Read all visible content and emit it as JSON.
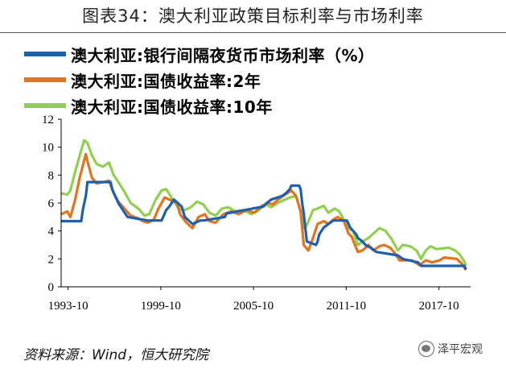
{
  "figure_title": "图表34：澳大利亚政策目标利率与市场利率",
  "source_note": "资料来源：Wind，恒大研究院",
  "watermark_text": "泽平宏观",
  "watermark_icon": "wechat-icon",
  "chart_data": {
    "type": "line",
    "x_axis": {
      "ticks": [
        "1993-10",
        "1999-10",
        "2005-10",
        "2011-10",
        "2017-10"
      ],
      "tick_years": [
        1993.75,
        1999.75,
        2005.75,
        2011.75,
        2017.75
      ],
      "range": [
        1993.3,
        2019.8
      ]
    },
    "y_axis": {
      "ticks": [
        "0",
        "2",
        "4",
        "6",
        "8",
        "10",
        "12"
      ],
      "range": [
        0,
        12
      ]
    },
    "grid": false,
    "legend_position": "top-left",
    "series": [
      {
        "name": "澳大利亚:银行间隔夜货币市场利率（%）",
        "color": "#1f5fb0",
        "points": [
          [
            1993.3,
            4.7
          ],
          [
            1993.9,
            4.7
          ],
          [
            1994.6,
            4.7
          ],
          [
            1994.7,
            5.5
          ],
          [
            1994.9,
            6.5
          ],
          [
            1995.0,
            7.5
          ],
          [
            1996.5,
            7.5
          ],
          [
            1996.6,
            7.0
          ],
          [
            1996.8,
            6.5
          ],
          [
            1997.0,
            6.0
          ],
          [
            1997.3,
            5.5
          ],
          [
            1997.6,
            5.0
          ],
          [
            1998.9,
            4.75
          ],
          [
            1999.8,
            4.75
          ],
          [
            1999.9,
            5.0
          ],
          [
            2000.1,
            5.5
          ],
          [
            2000.3,
            5.75
          ],
          [
            2000.6,
            6.25
          ],
          [
            2001.1,
            5.75
          ],
          [
            2001.3,
            5.0
          ],
          [
            2001.8,
            4.5
          ],
          [
            2002.3,
            4.75
          ],
          [
            2002.5,
            4.75
          ],
          [
            2003.9,
            5.0
          ],
          [
            2004.0,
            5.25
          ],
          [
            2005.2,
            5.5
          ],
          [
            2006.4,
            5.75
          ],
          [
            2006.6,
            6.0
          ],
          [
            2006.9,
            6.25
          ],
          [
            2007.6,
            6.5
          ],
          [
            2007.9,
            6.75
          ],
          [
            2008.1,
            7.0
          ],
          [
            2008.2,
            7.25
          ],
          [
            2008.7,
            7.25
          ],
          [
            2008.8,
            7.0
          ],
          [
            2008.9,
            6.0
          ],
          [
            2009.0,
            5.25
          ],
          [
            2009.1,
            4.25
          ],
          [
            2009.2,
            3.25
          ],
          [
            2009.8,
            3.0
          ],
          [
            2009.9,
            3.25
          ],
          [
            2010.0,
            3.75
          ],
          [
            2010.3,
            4.25
          ],
          [
            2010.9,
            4.75
          ],
          [
            2011.8,
            4.75
          ],
          [
            2011.9,
            4.5
          ],
          [
            2012.0,
            4.25
          ],
          [
            2012.4,
            3.75
          ],
          [
            2012.5,
            3.5
          ],
          [
            2012.8,
            3.25
          ],
          [
            2013.0,
            3.0
          ],
          [
            2013.4,
            2.75
          ],
          [
            2013.7,
            2.5
          ],
          [
            2015.1,
            2.25
          ],
          [
            2015.4,
            2.0
          ],
          [
            2016.4,
            1.75
          ],
          [
            2016.6,
            1.5
          ],
          [
            2019.4,
            1.5
          ],
          [
            2019.5,
            1.25
          ]
        ]
      },
      {
        "name": "澳大利亚:国债收益率:2年",
        "color": "#e4731c",
        "points": [
          [
            1993.3,
            5.2
          ],
          [
            1993.7,
            5.4
          ],
          [
            1993.9,
            5.0
          ],
          [
            1994.2,
            6.2
          ],
          [
            1994.5,
            7.8
          ],
          [
            1994.9,
            9.5
          ],
          [
            1995.0,
            9.0
          ],
          [
            1995.3,
            7.8
          ],
          [
            1995.6,
            7.4
          ],
          [
            1996.0,
            7.5
          ],
          [
            1996.4,
            7.6
          ],
          [
            1996.7,
            6.7
          ],
          [
            1997.0,
            6.1
          ],
          [
            1997.4,
            5.6
          ],
          [
            1997.8,
            5.1
          ],
          [
            1998.3,
            4.9
          ],
          [
            1998.6,
            4.7
          ],
          [
            1998.9,
            4.6
          ],
          [
            1999.3,
            4.8
          ],
          [
            1999.6,
            5.6
          ],
          [
            2000.0,
            6.4
          ],
          [
            2000.4,
            6.2
          ],
          [
            2000.8,
            6.0
          ],
          [
            2001.0,
            5.2
          ],
          [
            2001.4,
            4.6
          ],
          [
            2001.8,
            4.2
          ],
          [
            2002.2,
            5.0
          ],
          [
            2002.6,
            5.2
          ],
          [
            2002.9,
            4.7
          ],
          [
            2003.3,
            4.6
          ],
          [
            2003.8,
            5.2
          ],
          [
            2004.3,
            5.4
          ],
          [
            2004.8,
            5.2
          ],
          [
            2005.3,
            5.5
          ],
          [
            2005.8,
            5.3
          ],
          [
            2006.3,
            5.8
          ],
          [
            2006.7,
            6.0
          ],
          [
            2007.0,
            5.9
          ],
          [
            2007.4,
            6.3
          ],
          [
            2007.8,
            6.6
          ],
          [
            2008.2,
            6.9
          ],
          [
            2008.5,
            6.5
          ],
          [
            2008.8,
            5.4
          ],
          [
            2009.0,
            3.0
          ],
          [
            2009.3,
            2.6
          ],
          [
            2009.6,
            3.5
          ],
          [
            2009.9,
            4.5
          ],
          [
            2010.3,
            4.7
          ],
          [
            2010.6,
            4.5
          ],
          [
            2010.9,
            4.8
          ],
          [
            2011.2,
            5.0
          ],
          [
            2011.6,
            4.7
          ],
          [
            2011.9,
            3.8
          ],
          [
            2012.1,
            3.6
          ],
          [
            2012.5,
            2.5
          ],
          [
            2012.8,
            2.6
          ],
          [
            2013.2,
            3.0
          ],
          [
            2013.5,
            2.6
          ],
          [
            2013.9,
            2.9
          ],
          [
            2014.2,
            3.0
          ],
          [
            2014.6,
            2.8
          ],
          [
            2014.9,
            2.4
          ],
          [
            2015.2,
            1.9
          ],
          [
            2015.6,
            1.9
          ],
          [
            2016.0,
            1.9
          ],
          [
            2016.5,
            1.55
          ],
          [
            2016.9,
            1.9
          ],
          [
            2017.3,
            1.75
          ],
          [
            2017.8,
            1.9
          ],
          [
            2018.1,
            2.1
          ],
          [
            2018.5,
            2.05
          ],
          [
            2018.9,
            2.0
          ],
          [
            2019.2,
            1.7
          ],
          [
            2019.5,
            1.2
          ]
        ]
      },
      {
        "name": "澳大利亚:国债收益率:10年",
        "color": "#8fd14f",
        "points": [
          [
            1993.3,
            6.7
          ],
          [
            1993.7,
            6.6
          ],
          [
            1993.9,
            6.9
          ],
          [
            1994.2,
            8.2
          ],
          [
            1994.6,
            9.8
          ],
          [
            1994.8,
            10.5
          ],
          [
            1995.0,
            10.3
          ],
          [
            1995.3,
            9.4
          ],
          [
            1995.6,
            8.8
          ],
          [
            1996.0,
            8.6
          ],
          [
            1996.4,
            8.9
          ],
          [
            1996.7,
            8.0
          ],
          [
            1997.0,
            7.5
          ],
          [
            1997.4,
            6.8
          ],
          [
            1997.8,
            6.0
          ],
          [
            1998.3,
            5.6
          ],
          [
            1998.7,
            5.1
          ],
          [
            1999.0,
            5.2
          ],
          [
            1999.4,
            6.2
          ],
          [
            1999.8,
            6.9
          ],
          [
            2000.1,
            7.0
          ],
          [
            2000.5,
            6.3
          ],
          [
            2000.9,
            5.6
          ],
          [
            2001.3,
            5.5
          ],
          [
            2001.7,
            5.7
          ],
          [
            2002.1,
            6.1
          ],
          [
            2002.5,
            5.9
          ],
          [
            2002.9,
            5.3
          ],
          [
            2003.3,
            5.1
          ],
          [
            2003.7,
            5.6
          ],
          [
            2004.1,
            5.7
          ],
          [
            2004.6,
            5.4
          ],
          [
            2005.1,
            5.5
          ],
          [
            2005.6,
            5.2
          ],
          [
            2006.1,
            5.5
          ],
          [
            2006.5,
            5.9
          ],
          [
            2006.9,
            5.7
          ],
          [
            2007.3,
            6.0
          ],
          [
            2007.7,
            6.2
          ],
          [
            2008.1,
            6.4
          ],
          [
            2008.5,
            6.5
          ],
          [
            2008.8,
            5.4
          ],
          [
            2009.0,
            4.2
          ],
          [
            2009.2,
            4.4
          ],
          [
            2009.6,
            5.5
          ],
          [
            2009.9,
            5.6
          ],
          [
            2010.3,
            5.8
          ],
          [
            2010.6,
            5.3
          ],
          [
            2011.0,
            5.6
          ],
          [
            2011.3,
            5.4
          ],
          [
            2011.6,
            4.8
          ],
          [
            2011.9,
            4.2
          ],
          [
            2012.2,
            4.0
          ],
          [
            2012.5,
            3.0
          ],
          [
            2012.9,
            3.3
          ],
          [
            2013.2,
            3.5
          ],
          [
            2013.5,
            3.8
          ],
          [
            2013.9,
            4.2
          ],
          [
            2014.3,
            4.0
          ],
          [
            2014.7,
            3.4
          ],
          [
            2015.1,
            2.6
          ],
          [
            2015.4,
            3.0
          ],
          [
            2015.9,
            2.9
          ],
          [
            2016.3,
            2.6
          ],
          [
            2016.6,
            2.0
          ],
          [
            2016.9,
            2.6
          ],
          [
            2017.2,
            2.9
          ],
          [
            2017.6,
            2.7
          ],
          [
            2018.0,
            2.75
          ],
          [
            2018.4,
            2.8
          ],
          [
            2018.8,
            2.6
          ],
          [
            2019.1,
            2.3
          ],
          [
            2019.4,
            1.8
          ],
          [
            2019.5,
            1.5
          ]
        ]
      }
    ]
  }
}
